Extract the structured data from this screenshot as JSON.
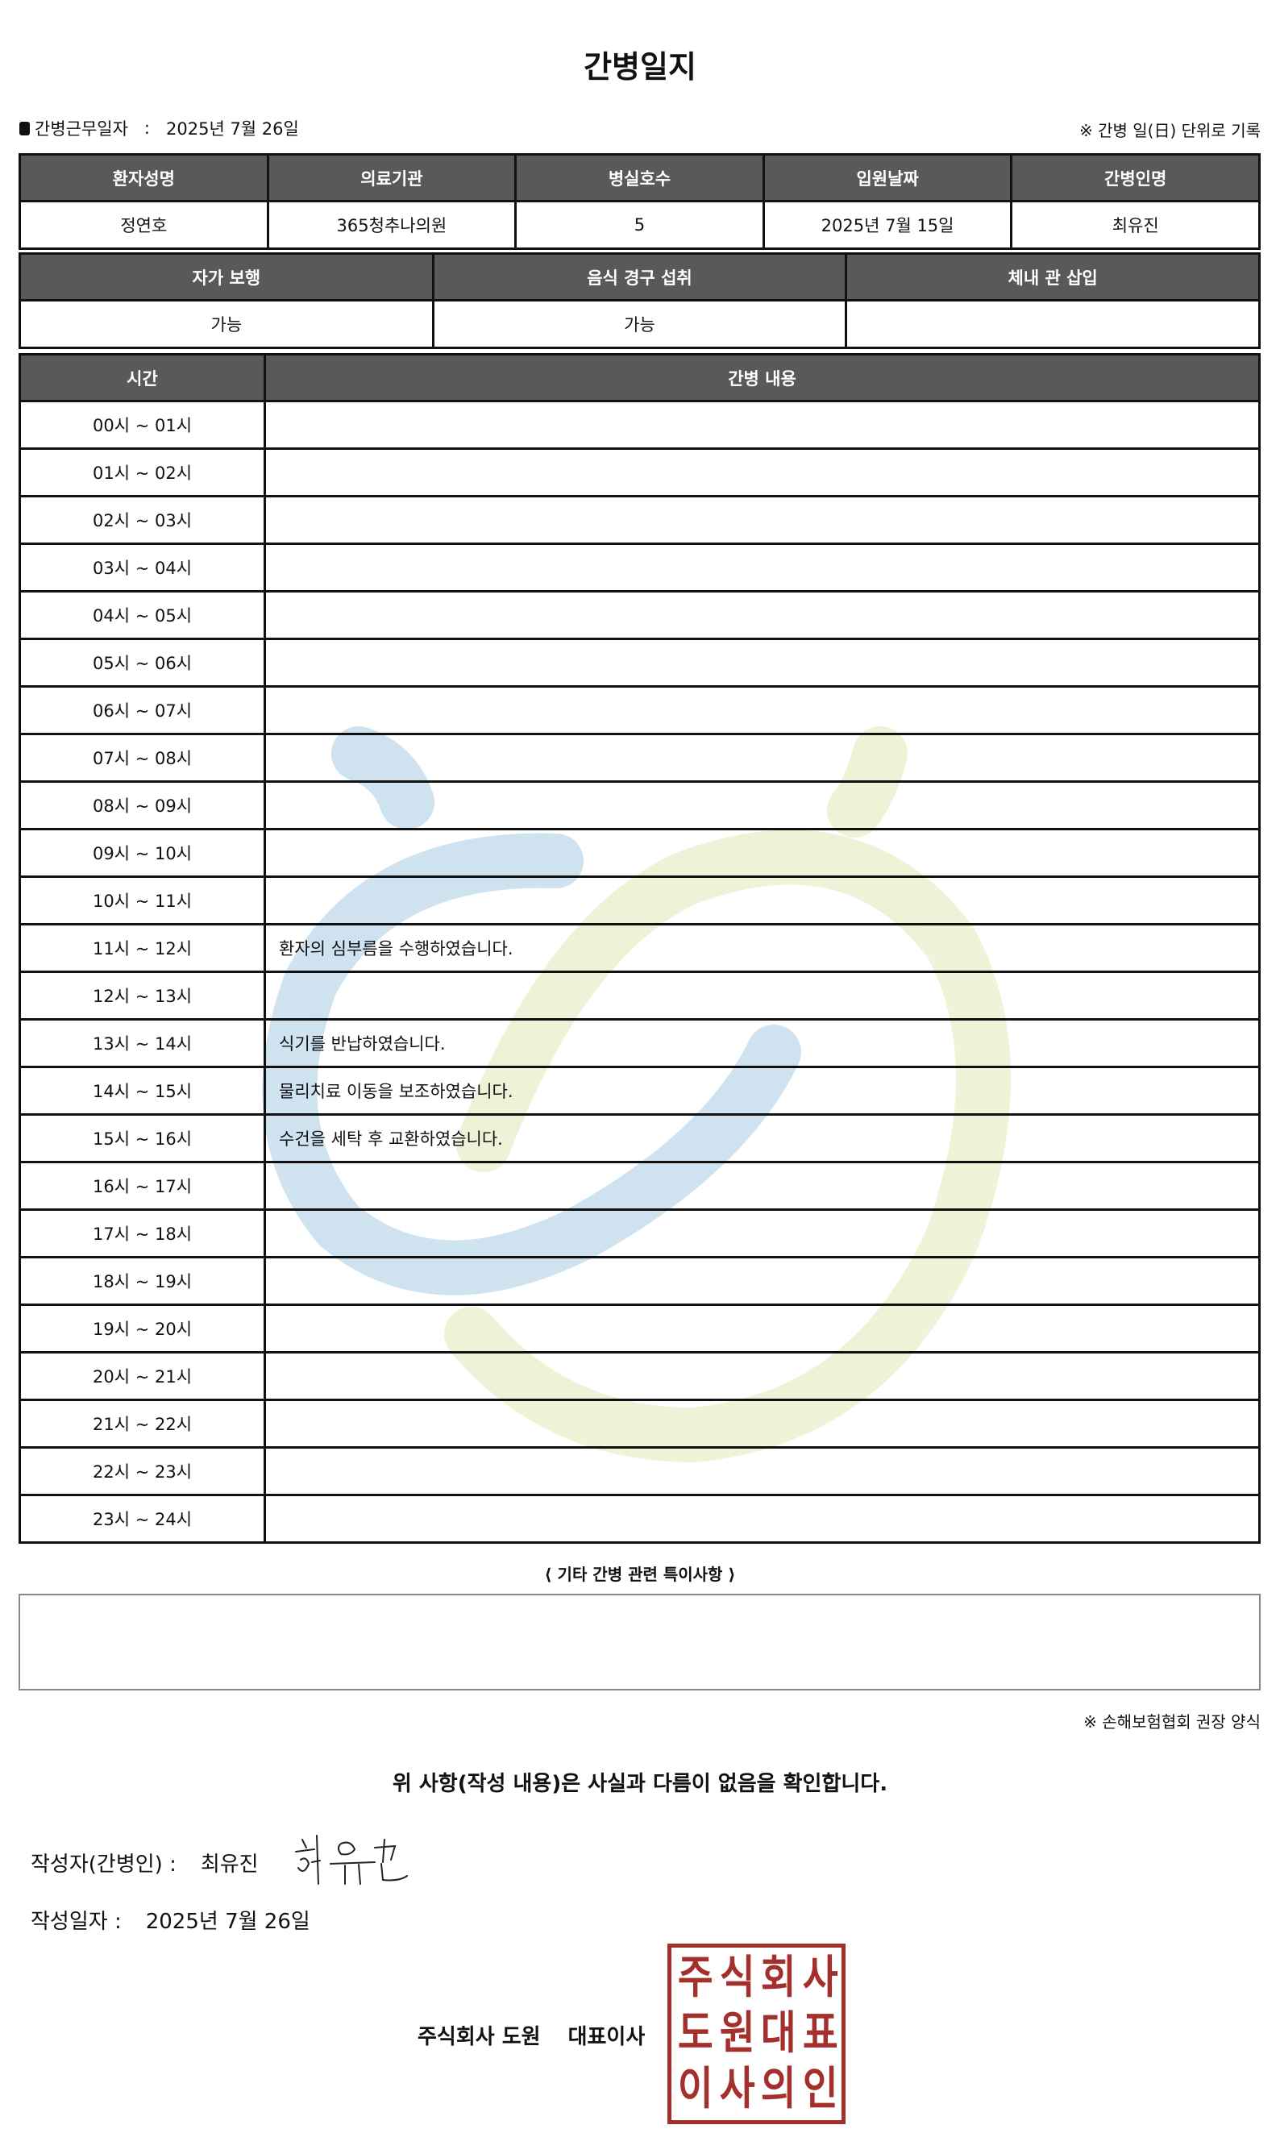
{
  "title": "간병일지",
  "work_date_label": "간병근무일자",
  "work_date_sep": ":",
  "work_date": "2025년 7월 26일",
  "note_top": "※ 간병 일(日) 단위로 기록",
  "info1": {
    "headers": [
      "환자성명",
      "의료기관",
      "병실호수",
      "입원날짜",
      "간병인명"
    ],
    "values": [
      "정연호",
      "365청추나의원",
      "5",
      "2025년 7월 15일",
      "최유진"
    ]
  },
  "info2": {
    "headers": [
      "자가 보행",
      "음식 경구 섭취",
      "체내 관 삽입"
    ],
    "values": [
      "가능",
      "가능",
      ""
    ]
  },
  "log": {
    "headers": [
      "시간",
      "간병 내용"
    ],
    "rows": [
      {
        "time": "00시 ~ 01시",
        "content": ""
      },
      {
        "time": "01시 ~ 02시",
        "content": ""
      },
      {
        "time": "02시 ~ 03시",
        "content": ""
      },
      {
        "time": "03시 ~ 04시",
        "content": ""
      },
      {
        "time": "04시 ~ 05시",
        "content": ""
      },
      {
        "time": "05시 ~ 06시",
        "content": ""
      },
      {
        "time": "06시 ~ 07시",
        "content": ""
      },
      {
        "time": "07시 ~ 08시",
        "content": ""
      },
      {
        "time": "08시 ~ 09시",
        "content": ""
      },
      {
        "time": "09시 ~ 10시",
        "content": ""
      },
      {
        "time": "10시 ~ 11시",
        "content": ""
      },
      {
        "time": "11시 ~ 12시",
        "content": "환자의 심부름을 수행하였습니다."
      },
      {
        "time": "12시 ~ 13시",
        "content": ""
      },
      {
        "time": "13시 ~ 14시",
        "content": "식기를 반납하였습니다."
      },
      {
        "time": "14시 ~ 15시",
        "content": "물리치료 이동을 보조하였습니다."
      },
      {
        "time": "15시 ~ 16시",
        "content": "수건을 세탁 후 교환하였습니다."
      },
      {
        "time": "16시 ~ 17시",
        "content": ""
      },
      {
        "time": "17시 ~ 18시",
        "content": ""
      },
      {
        "time": "18시 ~ 19시",
        "content": ""
      },
      {
        "time": "19시 ~ 20시",
        "content": ""
      },
      {
        "time": "20시 ~ 21시",
        "content": ""
      },
      {
        "time": "21시 ~ 22시",
        "content": ""
      },
      {
        "time": "22시 ~ 23시",
        "content": ""
      },
      {
        "time": "23시 ~ 24시",
        "content": ""
      }
    ]
  },
  "notes_label": "⟨ 기타 간병 관련 특이사항 ⟩",
  "notes_value": "",
  "note_bottom": "※ 손해보험협회 권장 양식",
  "confirm": "위 사항(작성 내용)은 사실과 다름이 없음을 확인합니다.",
  "writer_label": "작성자(간병인) :",
  "writer_name": "최유진",
  "signature_text": "최유진",
  "write_date_label": "작성일자 :",
  "write_date": "2025년 7월 26일",
  "company": "주식회사 도원",
  "title_role": "대표이사",
  "stamp_text": [
    "주",
    "식",
    "회",
    "사",
    "도",
    "원",
    "대",
    "표",
    "이",
    "사",
    "의",
    "인"
  ],
  "colors": {
    "header_bg": "#595959",
    "stamp": "#a3302c",
    "watermark_blue": "#cde1f0",
    "watermark_green": "#eef3d6"
  }
}
